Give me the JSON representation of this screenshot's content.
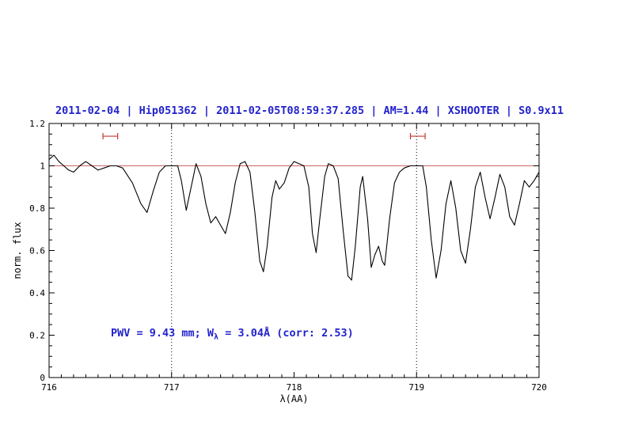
{
  "colors": {
    "title": "#2222cc",
    "annotation": "#2222cc",
    "spectrum": "#000000",
    "reference": "#cc6666",
    "marker": "#cc3333",
    "frame": "#000000"
  },
  "annotation": {
    "pre": "PWV = 9.43 mm; W",
    "sub": "λ",
    "post": " = 3.04Å (corr: 2.53)"
  },
  "chart_data": {
    "type": "line",
    "title": "2011-02-04 | Hip051362 | 2011-02-05T08:59:37.285 | AM=1.44 | XSHOOTER | S0.9x11",
    "xlabel": "λ(AA)",
    "ylabel": "norm. flux",
    "xlim": [
      716,
      720
    ],
    "ylim": [
      0,
      1.2
    ],
    "grid": false,
    "legend": false,
    "xticks": {
      "values": [
        716,
        717,
        718,
        719,
        720
      ],
      "labels": [
        "716",
        "717",
        "718",
        "719",
        "720"
      ]
    },
    "yticks": {
      "values": [
        0,
        0.2,
        0.4,
        0.6,
        0.8,
        1,
        1.2
      ],
      "labels": [
        "0",
        "0.2",
        "0.4",
        "0.6",
        "0.8",
        "1",
        "1.2"
      ]
    },
    "x_minor_step": 0.1,
    "y_minor_step": 0.05,
    "reference_line_y": 1.0,
    "dotted_vlines": [
      717,
      719
    ],
    "range_markers": [
      {
        "x_center": 716.5,
        "half_width": 0.06,
        "y": 1.14
      },
      {
        "x_center": 719.01,
        "half_width": 0.06,
        "y": 1.14
      }
    ],
    "annotations": [
      {
        "text": "PWV = 9.43 mm; Wλ = 3.04Å (corr: 2.53)",
        "x": 716.5,
        "y": 0.21
      }
    ],
    "series": [
      {
        "name": "telluric-spectrum",
        "x": [
          716.0,
          716.04,
          716.08,
          716.12,
          716.16,
          716.2,
          716.25,
          716.3,
          716.35,
          716.4,
          716.45,
          716.5,
          716.55,
          716.6,
          716.68,
          716.75,
          716.8,
          716.85,
          716.9,
          716.95,
          717.0,
          717.05,
          717.08,
          717.12,
          717.16,
          717.2,
          717.24,
          717.28,
          717.32,
          717.36,
          717.4,
          717.44,
          717.48,
          717.52,
          717.56,
          717.6,
          717.64,
          717.68,
          717.72,
          717.75,
          717.78,
          717.82,
          717.85,
          717.88,
          717.92,
          717.96,
          718.0,
          718.04,
          718.08,
          718.12,
          718.15,
          718.18,
          718.21,
          718.25,
          718.28,
          718.32,
          718.36,
          718.4,
          718.44,
          718.47,
          718.5,
          718.54,
          718.56,
          718.6,
          718.63,
          718.66,
          718.69,
          718.72,
          718.74,
          718.78,
          718.82,
          718.86,
          718.9,
          718.95,
          719.0,
          719.05,
          719.08,
          719.12,
          719.16,
          719.2,
          719.24,
          719.28,
          719.32,
          719.36,
          719.4,
          719.44,
          719.48,
          719.52,
          719.56,
          719.6,
          719.64,
          719.68,
          719.72,
          719.76,
          719.8,
          719.84,
          719.88,
          719.92,
          719.96,
          720.0
        ],
        "y": [
          1.03,
          1.05,
          1.02,
          1.0,
          0.98,
          0.97,
          1.0,
          1.02,
          1.0,
          0.98,
          0.99,
          1.0,
          1.0,
          0.99,
          0.92,
          0.82,
          0.78,
          0.88,
          0.97,
          1.0,
          1.0,
          1.0,
          0.93,
          0.79,
          0.9,
          1.01,
          0.95,
          0.82,
          0.73,
          0.76,
          0.72,
          0.68,
          0.78,
          0.92,
          1.01,
          1.02,
          0.97,
          0.78,
          0.55,
          0.5,
          0.62,
          0.85,
          0.93,
          0.89,
          0.92,
          0.99,
          1.02,
          1.01,
          1.0,
          0.9,
          0.68,
          0.59,
          0.75,
          0.95,
          1.01,
          1.0,
          0.94,
          0.7,
          0.48,
          0.46,
          0.62,
          0.9,
          0.95,
          0.75,
          0.52,
          0.58,
          0.62,
          0.55,
          0.53,
          0.75,
          0.92,
          0.97,
          0.99,
          1.0,
          1.0,
          1.0,
          0.9,
          0.65,
          0.47,
          0.6,
          0.82,
          0.93,
          0.8,
          0.6,
          0.54,
          0.7,
          0.9,
          0.97,
          0.85,
          0.75,
          0.85,
          0.96,
          0.9,
          0.76,
          0.72,
          0.82,
          0.93,
          0.9,
          0.93,
          0.97
        ]
      }
    ]
  }
}
